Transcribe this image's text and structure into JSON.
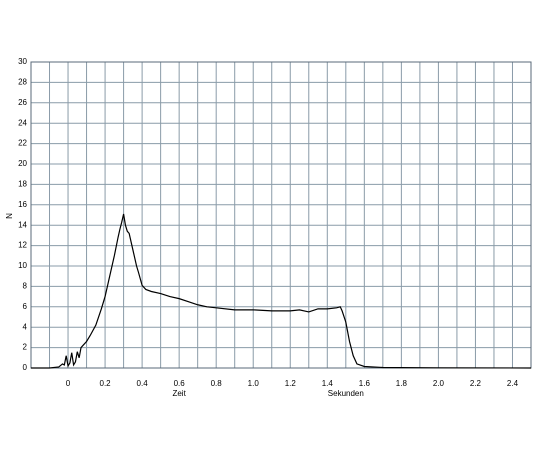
{
  "chart_data": {
    "type": "line",
    "x_label": "Zeit",
    "x_unit_label": "Sekunden",
    "y_label": "N",
    "xlim": [
      -0.2,
      2.5
    ],
    "ylim": [
      0,
      30
    ],
    "xticks": [
      0,
      0.2,
      0.4,
      0.6,
      0.8,
      {
        "value": 1,
        "label": "1.0"
      },
      1.2,
      1.4,
      1.6,
      1.8,
      {
        "value": 2,
        "label": "2.0"
      },
      2.2,
      2.4
    ],
    "xgrid": [
      -0.1,
      0.1,
      0.3,
      0.5,
      0.7,
      0.9,
      1.1,
      1.3,
      1.5,
      1.7,
      1.9,
      2.1,
      2.3
    ],
    "yticks": [
      0,
      2,
      4,
      6,
      8,
      10,
      12,
      14,
      16,
      18,
      20,
      22,
      24,
      26,
      28,
      30
    ],
    "grid": true,
    "series": [
      {
        "color": "#000000",
        "x": [
          -0.2,
          -0.1,
          -0.05,
          -0.03,
          -0.02,
          -0.01,
          0.0,
          0.01,
          0.02,
          0.03,
          0.04,
          0.05,
          0.06,
          0.07,
          0.08,
          0.1,
          0.12,
          0.15,
          0.18,
          0.2,
          0.22,
          0.25,
          0.27,
          0.28,
          0.29,
          0.3,
          0.31,
          0.32,
          0.33,
          0.35,
          0.37,
          0.38,
          0.4,
          0.42,
          0.45,
          0.5,
          0.55,
          0.6,
          0.65,
          0.7,
          0.75,
          0.8,
          0.9,
          1.0,
          1.1,
          1.2,
          1.25,
          1.3,
          1.35,
          1.4,
          1.45,
          1.47,
          1.48,
          1.5,
          1.52,
          1.54,
          1.56,
          1.6,
          1.7,
          2.0,
          2.5
        ],
        "values": [
          0,
          0,
          0.1,
          0.4,
          0.3,
          1.2,
          0.2,
          0.5,
          1.5,
          0.3,
          0.6,
          1.6,
          1.0,
          2.0,
          2.2,
          2.6,
          3.2,
          4.2,
          5.8,
          7.0,
          8.6,
          11.0,
          12.8,
          13.6,
          14.3,
          15.1,
          14.0,
          13.4,
          13.2,
          11.6,
          10.0,
          9.4,
          8.1,
          7.7,
          7.5,
          7.3,
          7.0,
          6.8,
          6.5,
          6.2,
          6.0,
          5.9,
          5.7,
          5.7,
          5.6,
          5.6,
          5.7,
          5.5,
          5.8,
          5.8,
          5.9,
          6.0,
          5.6,
          4.5,
          2.6,
          1.2,
          0.4,
          0.15,
          0.05,
          0.02,
          0
        ]
      }
    ]
  }
}
